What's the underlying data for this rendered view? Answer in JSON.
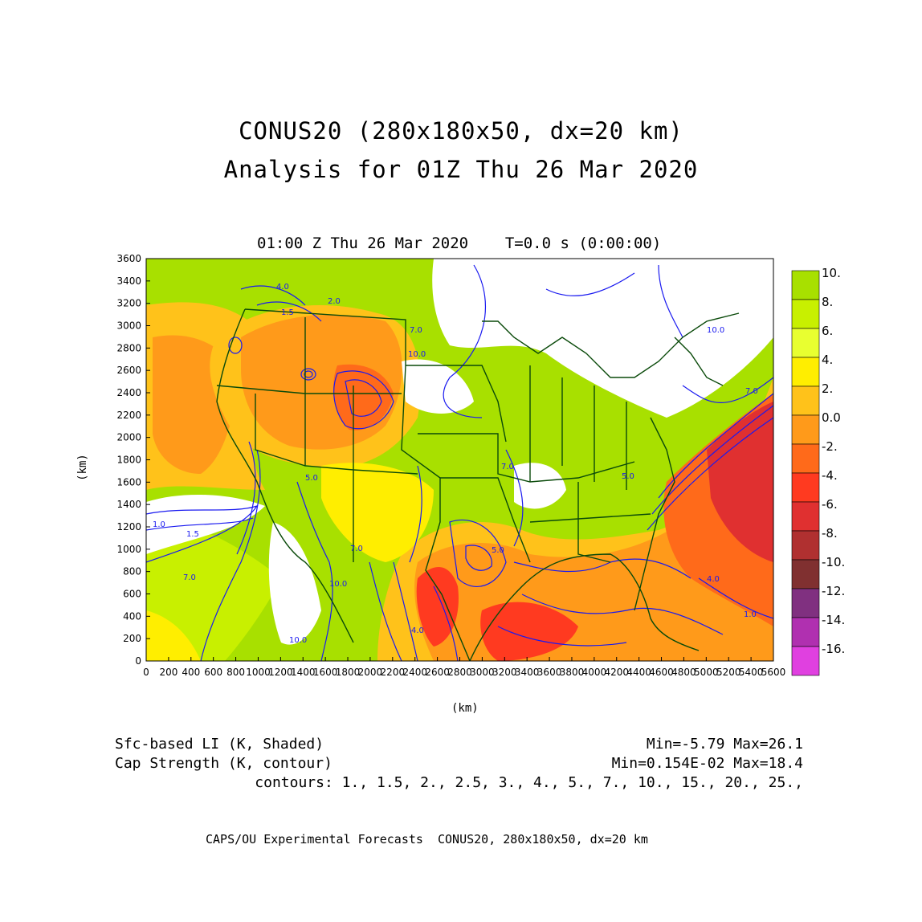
{
  "titles": {
    "line1": "CONUS20 (280x180x50, dx=20 km)",
    "line2": "Analysis for 01Z Thu 26 Mar 2020"
  },
  "plot": {
    "header": "01:00 Z Thu 26 Mar 2020    T=0.0 s (0:00:00)",
    "xlabel": "(km)",
    "ylabel": "(km)",
    "xticks": [
      "0",
      "200",
      "400",
      "600",
      "800",
      "1000",
      "1200",
      "1400",
      "1600",
      "1800",
      "2000",
      "2200",
      "2400",
      "2600",
      "2800",
      "3000",
      "3200",
      "3400",
      "3600",
      "3800",
      "4000",
      "4200",
      "4400",
      "4600",
      "4800",
      "5000",
      "5200",
      "5400",
      "5600"
    ],
    "yticks": [
      "0",
      "200",
      "400",
      "600",
      "800",
      "1000",
      "1200",
      "1400",
      "1600",
      "1800",
      "2000",
      "2200",
      "2400",
      "2600",
      "2800",
      "3000",
      "3200",
      "3400",
      "3600"
    ],
    "contour_labels": [
      "4.0",
      "1.5",
      "2.0",
      "7.0",
      "1.0",
      "10.0",
      "5.0",
      "7.0",
      "10.0",
      "1.5",
      "5.0",
      "7.0",
      "10.0",
      "7.0",
      "10.0",
      "4.0",
      "5.0",
      "4.0",
      "1.0",
      "7.0"
    ]
  },
  "colorbar": {
    "labels": [
      "10.",
      "8.",
      "6.",
      "4.",
      "2.",
      "0.0",
      "-2.",
      "-4.",
      "-6.",
      "-8.",
      "-10.",
      "-12.",
      "-14.",
      "-16."
    ],
    "colors": [
      "#a8e000",
      "#c8f000",
      "#e8ff30",
      "#ffee00",
      "#ffc21a",
      "#ff9a1a",
      "#ff6a1a",
      "#ff3a20",
      "#e03030",
      "#b03030",
      "#803030",
      "#803080",
      "#b030b0",
      "#e040e0"
    ]
  },
  "info": {
    "field1": "Sfc-based LI (K, Shaded)",
    "field1_range": "Min=-5.79 Max=26.1",
    "field2": "Cap Strength (K, contour)",
    "field2_range": "Min=0.154E-02 Max=18.4",
    "contours": "contours: 1., 1.5, 2., 2.5, 3., 4., 5., 7., 10., 15., 20., 25.,"
  },
  "footer": "CAPS/OU Experimental Forecasts  CONUS20, 280x180x50, dx=20 km"
}
